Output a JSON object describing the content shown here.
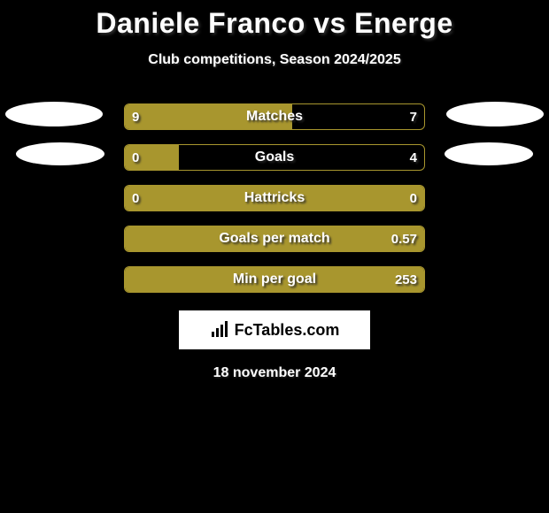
{
  "header": {
    "title": "Daniele Franco vs Energe",
    "subtitle": "Club competitions, Season 2024/2025"
  },
  "chart": {
    "bar_color": "#a8962e",
    "border_color": "#a8962e",
    "bg_color": "#000000",
    "text_color": "#ffffff",
    "rows": [
      {
        "label": "Matches",
        "left_val": "9",
        "right_val": "7",
        "left_pct": 56,
        "right_pct": 0
      },
      {
        "label": "Goals",
        "left_val": "0",
        "right_val": "4",
        "left_pct": 18,
        "right_pct": 0
      },
      {
        "label": "Hattricks",
        "left_val": "0",
        "right_val": "0",
        "left_pct": 100,
        "right_pct": 0
      },
      {
        "label": "Goals per match",
        "left_val": "",
        "right_val": "0.57",
        "left_pct": 100,
        "right_pct": 0
      },
      {
        "label": "Min per goal",
        "left_val": "",
        "right_val": "253",
        "left_pct": 100,
        "right_pct": 0
      }
    ]
  },
  "footer": {
    "logo_text": "FcTables.com",
    "date": "18 november 2024"
  }
}
